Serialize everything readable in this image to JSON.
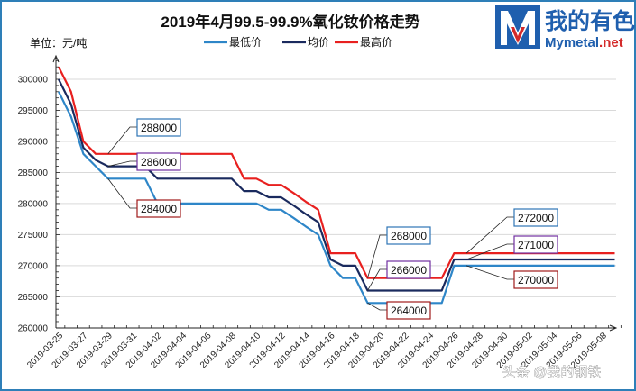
{
  "chart_data": {
    "type": "line",
    "title": "2019年4月99.5-99.9%氧化钕价格走势",
    "unit_label": "单位：元/吨",
    "ylim": [
      260000,
      303000
    ],
    "y_ticks": [
      "260000",
      "265000",
      "270000",
      "275000",
      "280000",
      "285000",
      "290000",
      "295000",
      "300000"
    ],
    "y_tick_values": [
      260000,
      265000,
      270000,
      275000,
      280000,
      285000,
      290000,
      295000,
      300000
    ],
    "grid": "horizontal",
    "legend_placement": "top",
    "categories": [
      "2019-03-25",
      "2019-03-26",
      "2019-03-27",
      "2019-03-28",
      "2019-03-29",
      "2019-03-30",
      "2019-03-31",
      "2019-04-01",
      "2019-04-02",
      "2019-04-03",
      "2019-04-04",
      "2019-04-05",
      "2019-04-06",
      "2019-04-07",
      "2019-04-08",
      "2019-04-09",
      "2019-04-10",
      "2019-04-11",
      "2019-04-12",
      "2019-04-13",
      "2019-04-14",
      "2019-04-15",
      "2019-04-16",
      "2019-04-17",
      "2019-04-18",
      "2019-04-19",
      "2019-04-20",
      "2019-04-21",
      "2019-04-22",
      "2019-04-23",
      "2019-04-24",
      "2019-04-25",
      "2019-04-26",
      "2019-04-27",
      "2019-04-28",
      "2019-04-29",
      "2019-04-30",
      "2019-05-01",
      "2019-05-02",
      "2019-05-03",
      "2019-05-04",
      "2019-05-05",
      "2019-05-06",
      "2019-05-07",
      "2019-05-08",
      "2019-05-09"
    ],
    "x_tick_labels": [
      "2019-03-25",
      "2019-03-27",
      "2019-03-29",
      "2019-03-31",
      "2019-04-02",
      "2019-04-04",
      "2019-04-06",
      "2019-04-08",
      "2019-04-10",
      "2019-04-12",
      "2019-04-14",
      "2019-04-16",
      "2019-04-18",
      "2019-04-20",
      "2019-04-22",
      "2019-04-24",
      "2019-04-26",
      "2019-04-28",
      "2019-04-30",
      "2019-05-02",
      "2019-05-04",
      "2019-05-06",
      "2019-05-08"
    ],
    "series": [
      {
        "name": "最低价",
        "color": "#2e86c8",
        "values": [
          298000,
          294000,
          288000,
          286000,
          284000,
          284000,
          284000,
          284000,
          280000,
          280000,
          280000,
          280000,
          280000,
          280000,
          280000,
          280000,
          280000,
          279000,
          279000,
          277700,
          276300,
          275000,
          270000,
          268000,
          268000,
          264000,
          264000,
          264000,
          264000,
          264000,
          264000,
          264000,
          270000,
          270000,
          270000,
          270000,
          270000,
          270000,
          270000,
          270000,
          270000,
          270000,
          270000,
          270000,
          270000,
          270000
        ]
      },
      {
        "name": "均价",
        "color": "#1a2a5e",
        "values": [
          300000,
          296000,
          289000,
          287000,
          286000,
          286000,
          286000,
          286000,
          284000,
          284000,
          284000,
          284000,
          284000,
          284000,
          284000,
          282000,
          282000,
          281000,
          281000,
          279700,
          278300,
          277000,
          271000,
          270000,
          270000,
          266000,
          266000,
          266000,
          266000,
          266000,
          266000,
          266000,
          271000,
          271000,
          271000,
          271000,
          271000,
          271000,
          271000,
          271000,
          271000,
          271000,
          271000,
          271000,
          271000,
          271000
        ]
      },
      {
        "name": "最高价",
        "color": "#e8201f",
        "values": [
          302000,
          298000,
          290000,
          288000,
          288000,
          288000,
          288000,
          288000,
          288000,
          288000,
          288000,
          288000,
          288000,
          288000,
          288000,
          284000,
          284000,
          283000,
          283000,
          281700,
          280300,
          279000,
          272000,
          272000,
          272000,
          268000,
          268000,
          268000,
          268000,
          268000,
          268000,
          268000,
          272000,
          272000,
          272000,
          272000,
          272000,
          272000,
          272000,
          272000,
          272000,
          272000,
          272000,
          272000,
          272000,
          272000
        ]
      }
    ],
    "annotations": [
      {
        "text": "288000",
        "series": "最高价",
        "category": "2019-03-29",
        "border": "#2e75b6"
      },
      {
        "text": "286000",
        "series": "均价",
        "category": "2019-03-29",
        "border": "#7030a0"
      },
      {
        "text": "284000",
        "series": "最低价",
        "category": "2019-03-29",
        "border": "#a01a1a"
      },
      {
        "text": "268000",
        "series": "最高价",
        "category": "2019-04-19",
        "border": "#2e75b6"
      },
      {
        "text": "266000",
        "series": "均价",
        "category": "2019-04-19",
        "border": "#7030a0"
      },
      {
        "text": "264000",
        "series": "最低价",
        "category": "2019-04-19",
        "border": "#a01a1a"
      },
      {
        "text": "272000",
        "series": "最高价",
        "category": "2019-04-27",
        "border": "#2e75b6"
      },
      {
        "text": "271000",
        "series": "均价",
        "category": "2019-04-27",
        "border": "#7030a0"
      },
      {
        "text": "270000",
        "series": "最低价",
        "category": "2019-04-27",
        "border": "#a01a1a"
      }
    ]
  },
  "logo": {
    "cn": "我的有色",
    "en_main": "Mymetal",
    "en_suffix": ".net",
    "mark": "M"
  },
  "watermark": "头条 @我的钢铁",
  "colors": {
    "frame": "#2e7fb8",
    "grid": "#d9d9d9",
    "logo_blue": "#1f5fae",
    "logo_red": "#d42a2a"
  }
}
